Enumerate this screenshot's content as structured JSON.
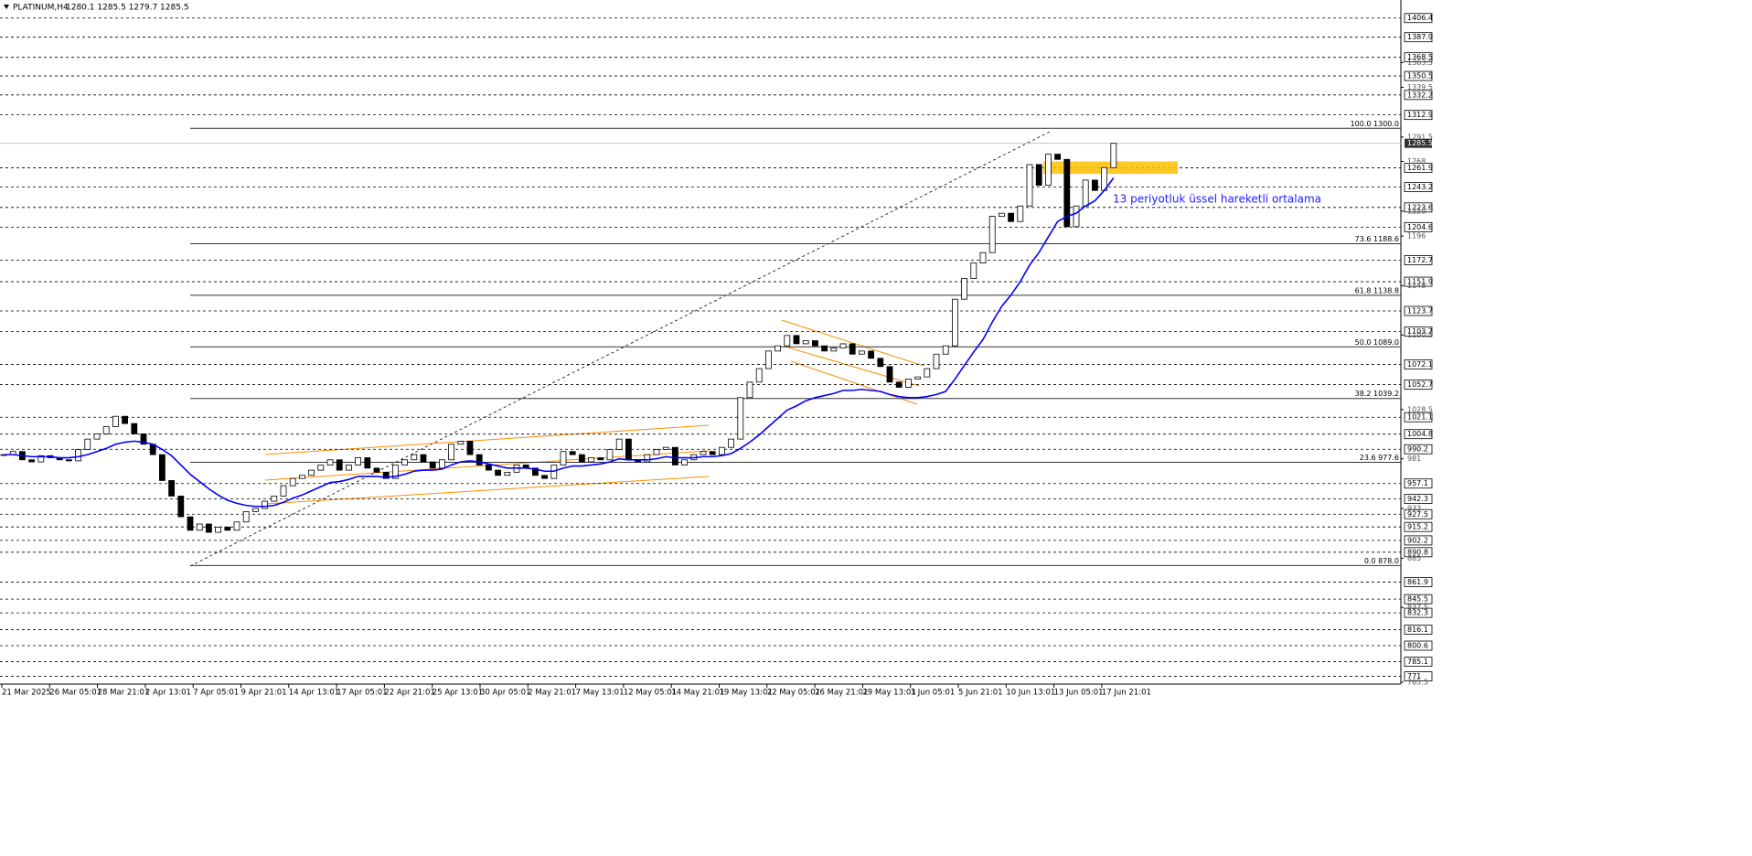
{
  "chart_data": {
    "type": "candlestick",
    "title": "PLATINUM,H4",
    "quote": "1280.1 1285.5 1279.7 1285.5",
    "annotation": "13 periyotluk üssel hareketli ortalama",
    "ylim": [
      760,
      1415
    ],
    "levels": [
      1406.4,
      1387.9,
      1368.5,
      1350.5,
      1332.2,
      1312.9,
      1261.9,
      1243.2,
      1223.6,
      1204.6,
      1172.7,
      1151.9,
      1123.7,
      1103.7,
      1072.1,
      1052.7,
      1021.1,
      1004.8,
      990.2,
      957.1,
      942.3,
      927.5,
      915.2,
      902.2,
      890.8,
      861.9,
      845.5,
      832.3,
      816.1,
      800.6,
      785.1,
      771.0
    ],
    "yticks": [
      1363.5,
      1339.5,
      1291.5,
      1268.0,
      1220.0,
      1196.0,
      1148.0,
      1100.5,
      1028.5,
      981.0,
      933.0,
      885.0,
      837.5,
      765.5
    ],
    "current_price": 1285.5,
    "fib": [
      {
        "label": "100.0 1300.0",
        "price": 1300.0
      },
      {
        "label": "73.6 1188.6",
        "price": 1188.6
      },
      {
        "label": "61.8 1138.8",
        "price": 1138.8
      },
      {
        "label": "50.0 1089.0",
        "price": 1089.0
      },
      {
        "label": "38.2 1039.2",
        "price": 1039.2
      },
      {
        "label": "23.6 977.6",
        "price": 977.6
      },
      {
        "label": "0.0 878.0",
        "price": 878.0
      }
    ],
    "zone": [
      1256,
      1268
    ],
    "categories": [
      "21 Mar 2025",
      "26 Mar 05:01",
      "28 Mar 21:01",
      "2 Apr 13:01",
      "7 Apr 05:01",
      "9 Apr 21:01",
      "14 Apr 13:01",
      "17 Apr 05:01",
      "22 Apr 21:01",
      "25 Apr 13:01",
      "30 Apr 05:01",
      "2 May 21:01",
      "7 May 13:01",
      "12 May 05:01",
      "14 May 21:01",
      "19 May 13:01",
      "22 May 05:01",
      "26 May 21:01",
      "29 May 13:01",
      "3 Jun 05:01",
      "5 Jun 21:01",
      "10 Jun 13:01",
      "13 Jun 05:01",
      "17 Jun 21:01"
    ],
    "closes": [
      985,
      988,
      980,
      978,
      984,
      982,
      980,
      979,
      990,
      1000,
      1005,
      1012,
      1022,
      1015,
      1005,
      995,
      985,
      960,
      945,
      925,
      912,
      918,
      910,
      915,
      912,
      920,
      930,
      933,
      940,
      945,
      955,
      962,
      965,
      970,
      975,
      980,
      970,
      975,
      982,
      972,
      968,
      962,
      975,
      980,
      985,
      978,
      972,
      980,
      995,
      998,
      985,
      975,
      970,
      965,
      968,
      975,
      972,
      965,
      962,
      975,
      988,
      985,
      978,
      982,
      980,
      990,
      1000,
      980,
      978,
      985,
      990,
      992,
      975,
      980,
      985,
      988,
      985,
      992,
      1000,
      1040,
      1055,
      1068,
      1085,
      1090,
      1100,
      1092,
      1095,
      1090,
      1085,
      1088,
      1092,
      1082,
      1085,
      1078,
      1070,
      1055,
      1050,
      1058,
      1060,
      1068,
      1082,
      1090,
      1135,
      1155,
      1170,
      1180,
      1215,
      1218,
      1210,
      1225,
      1265,
      1245,
      1275,
      1270,
      1205,
      1225,
      1250,
      1240,
      1262,
      1285.5
    ],
    "ema": [
      985,
      985,
      984,
      983,
      983,
      983,
      982,
      982,
      983,
      985,
      988,
      991,
      995,
      997,
      998,
      997,
      995,
      990,
      984,
      975,
      966,
      959,
      952,
      946,
      941,
      938,
      936,
      935,
      935,
      936,
      939,
      943,
      946,
      950,
      954,
      958,
      959,
      961,
      964,
      964,
      964,
      963,
      964,
      966,
      969,
      970,
      970,
      971,
      975,
      978,
      979,
      978,
      976,
      974,
      972,
      972,
      972,
      971,
      969,
      969,
      972,
      974,
      974,
      975,
      976,
      978,
      981,
      980,
      980,
      980,
      981,
      983,
      982,
      982,
      982,
      983,
      983,
      984,
      986,
      991,
      997,
      1004,
      1012,
      1020,
      1028,
      1032,
      1037,
      1040,
      1042,
      1044,
      1047,
      1047,
      1048,
      1047,
      1046,
      1043,
      1041,
      1040,
      1040,
      1041,
      1043,
      1046,
      1058,
      1071,
      1084,
      1096,
      1113,
      1128,
      1139,
      1152,
      1168,
      1180,
      1195,
      1210,
      1215,
      1218,
      1225,
      1230,
      1240,
      1252
    ],
    "ema_color": "#0000ff",
    "zone_color": "#ffc000",
    "channel_color": "#ff8c00"
  }
}
